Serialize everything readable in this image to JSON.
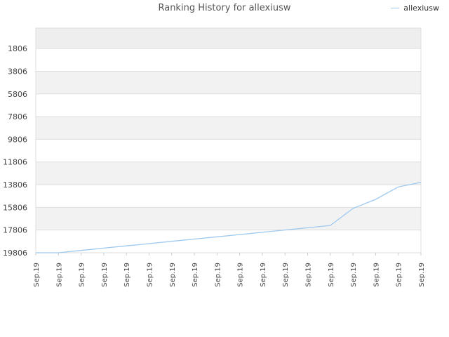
{
  "chart_data": {
    "type": "line",
    "title": "Ranking History for allexiusw",
    "xlabel": "",
    "ylabel": "",
    "categories": [
      "Sep.19",
      "Sep.19",
      "Sep.19",
      "Sep.19",
      "Sep.19",
      "Sep.19",
      "Sep.19",
      "Sep.19",
      "Sep.19",
      "Sep.19",
      "Sep.19",
      "Sep.19",
      "Sep.19",
      "Sep.19",
      "Sep.19",
      "Sep.19",
      "Sep.19",
      "Sep.19"
    ],
    "y_ticks": [
      1806,
      3806,
      5806,
      7806,
      9806,
      11806,
      13806,
      15806,
      17806,
      19806
    ],
    "ylim": [
      19806,
      0
    ],
    "y_inverted": true,
    "grid": true,
    "legend_position": "top-right",
    "series": [
      {
        "name": "allexiusw",
        "color": "#9ec9f0",
        "values": [
          19806,
          19806,
          19600,
          19400,
          19200,
          19000,
          18800,
          18600,
          18400,
          18200,
          18000,
          17800,
          17600,
          17400,
          15900,
          15100,
          14000,
          13600
        ]
      }
    ]
  }
}
